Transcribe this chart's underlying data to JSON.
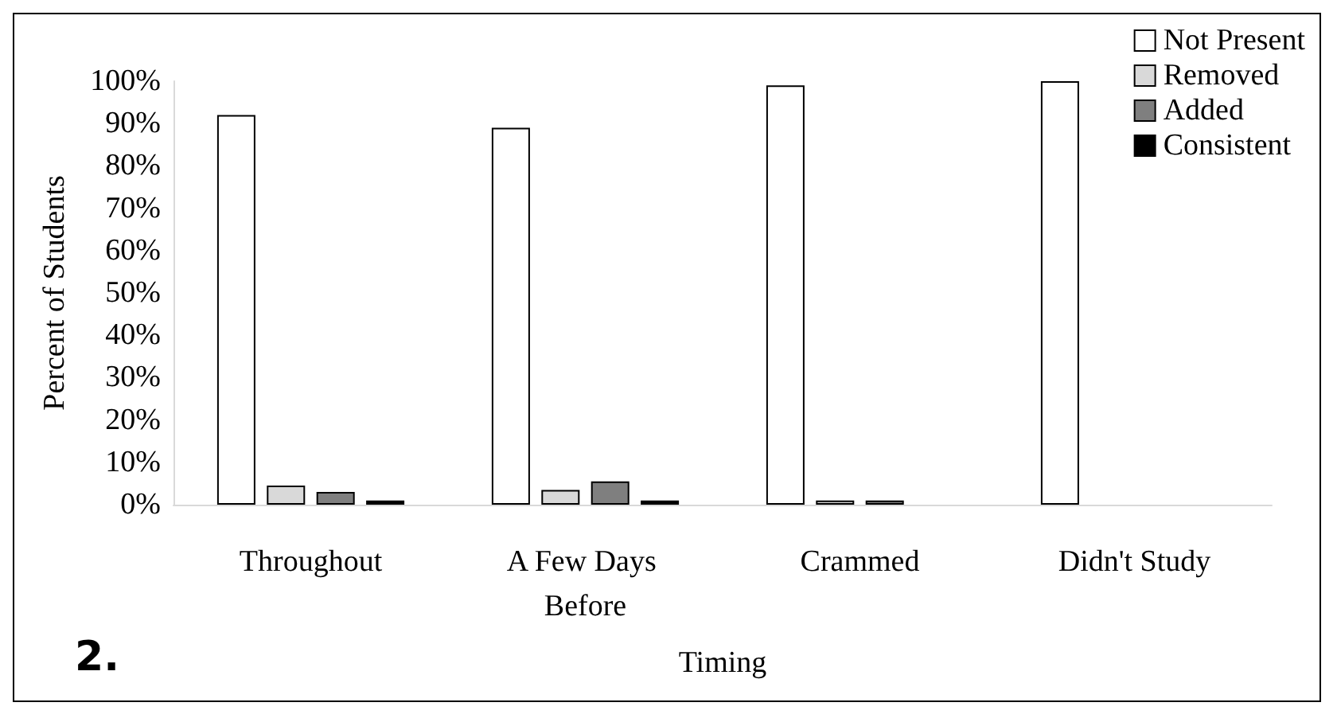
{
  "chart_data": {
    "type": "bar",
    "xlabel": "Timing",
    "ylabel": "Percent of Students",
    "annotations": [
      "2."
    ],
    "categories": [
      "Throughout",
      "A Few Days Before",
      "Crammed",
      "Didn't Study"
    ],
    "series": [
      {
        "name": "Not Present",
        "color": "#ffffff",
        "values": [
          92,
          89,
          99,
          100
        ]
      },
      {
        "name": "Removed",
        "color": "#d9d9d9",
        "values": [
          4.5,
          3.5,
          1,
          0
        ]
      },
      {
        "name": "Added",
        "color": "#7f7f7f",
        "values": [
          3,
          5.5,
          1,
          0
        ]
      },
      {
        "name": "Consistent",
        "color": "#000000",
        "values": [
          1,
          1,
          0,
          0
        ]
      }
    ],
    "ylim": [
      0,
      100
    ],
    "yticks": [
      {
        "value": 0,
        "label": "0%"
      },
      {
        "value": 10,
        "label": "10%"
      },
      {
        "value": 20,
        "label": "20%"
      },
      {
        "value": 30,
        "label": "30%"
      },
      {
        "value": 40,
        "label": "40%"
      },
      {
        "value": 50,
        "label": "50%"
      },
      {
        "value": 60,
        "label": "60%"
      },
      {
        "value": 70,
        "label": "70%"
      },
      {
        "value": 80,
        "label": "80%"
      },
      {
        "value": 90,
        "label": "90%"
      },
      {
        "value": 100,
        "label": "100%"
      }
    ],
    "grid": false,
    "legend": "top right"
  }
}
